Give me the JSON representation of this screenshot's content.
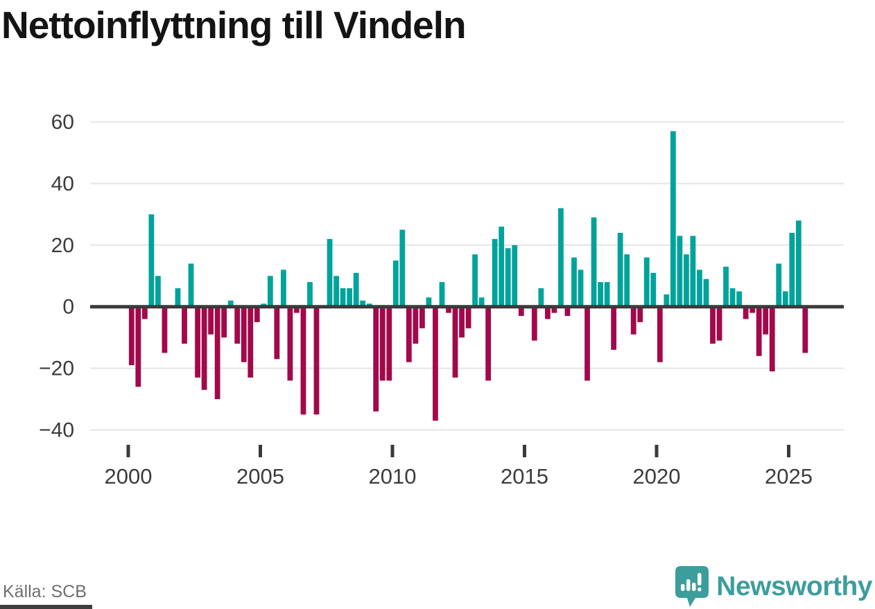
{
  "title": "Nettoinflyttning till Vindeln",
  "source_caption": "Källa: SCB",
  "brand": {
    "name": "Newsworthy"
  },
  "chart_data": {
    "type": "bar",
    "title": "Nettoinflyttning till Vindeln",
    "xlabel": "",
    "ylabel": "",
    "frequency": "quarterly",
    "start_year": 2000,
    "start_quarter": 1,
    "end_year": 2025,
    "end_quarter": 3,
    "ylim": [
      -45,
      65
    ],
    "grid": "horizontal",
    "legend": "none",
    "y_ticks": [
      {
        "value": 60,
        "label": "60"
      },
      {
        "value": 40,
        "label": "40"
      },
      {
        "value": 20,
        "label": "20"
      },
      {
        "value": 0,
        "label": "0"
      },
      {
        "value": -20,
        "label": "−20"
      },
      {
        "value": -40,
        "label": "−40"
      }
    ],
    "x_ticks": [
      {
        "year": 2000,
        "label": "2000"
      },
      {
        "year": 2005,
        "label": "2005"
      },
      {
        "year": 2010,
        "label": "2010"
      },
      {
        "year": 2015,
        "label": "2015"
      },
      {
        "year": 2020,
        "label": "2020"
      },
      {
        "year": 2025,
        "label": "2025"
      }
    ],
    "values": [
      -19,
      -26,
      -4,
      30,
      10,
      -15,
      0,
      6,
      -12,
      14,
      -23,
      -27,
      -9,
      -30,
      -10,
      2,
      -12,
      -18,
      -23,
      -5,
      1,
      10,
      -17,
      12,
      -24,
      -2,
      -35,
      8,
      -35,
      0,
      22,
      10,
      6,
      6,
      11,
      2,
      1,
      -34,
      -24,
      -24,
      15,
      25,
      -18,
      -12,
      -7,
      3,
      -37,
      8,
      -2,
      -23,
      -10,
      -7,
      17,
      3,
      -24,
      22,
      26,
      19,
      20,
      -3,
      0,
      -11,
      6,
      -4,
      -2,
      32,
      -3,
      16,
      12,
      -24,
      29,
      8,
      8,
      -14,
      24,
      17,
      -9,
      -5,
      16,
      11,
      -18,
      4,
      57,
      23,
      17,
      23,
      12,
      9,
      -12,
      -11,
      13,
      6,
      5,
      -4,
      -2,
      -16,
      -9,
      -21,
      14,
      5,
      24,
      28,
      -15
    ],
    "colors": {
      "positive": "#00a39b",
      "negative": "#a2094a",
      "grid": "#e9e9e9",
      "zero_line": "#3a3a3a",
      "tick_label": "#3b3b3b"
    }
  }
}
